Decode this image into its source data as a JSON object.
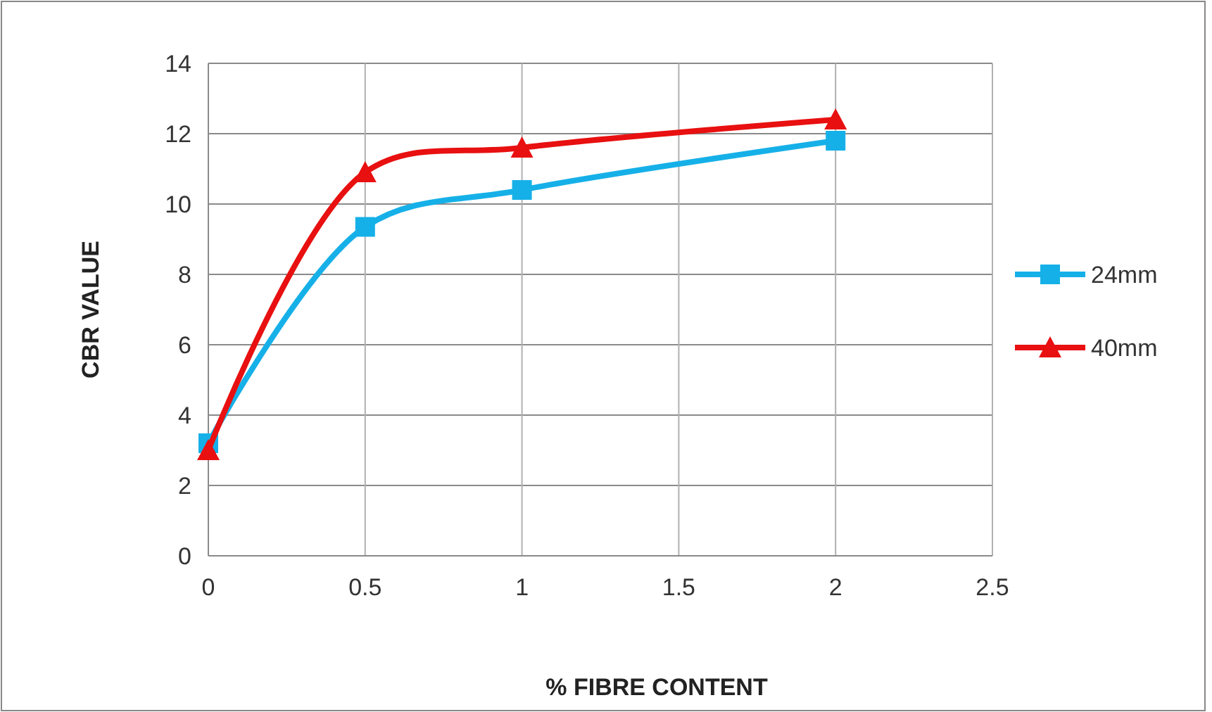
{
  "chart_data": {
    "type": "line",
    "xlabel": "% FIBRE CONTENT",
    "ylabel": "CBR VALUE",
    "x": [
      0,
      0.5,
      1,
      2
    ],
    "series": [
      {
        "name": "24mm",
        "color": "#16b0e8",
        "values": [
          3.2,
          9.35,
          10.4,
          11.8
        ],
        "marker": "square"
      },
      {
        "name": "40mm",
        "color": "#e81010",
        "values": [
          3.0,
          10.9,
          11.6,
          12.4
        ],
        "marker": "triangle"
      }
    ],
    "xlim": [
      0,
      2.5
    ],
    "xticks": [
      0,
      0.5,
      1,
      1.5,
      2,
      2.5
    ],
    "ylim": [
      0,
      14
    ],
    "yticks": [
      0,
      2,
      4,
      6,
      8,
      10,
      12,
      14
    ],
    "grid": true,
    "legend": "right",
    "line_style": "solid"
  }
}
